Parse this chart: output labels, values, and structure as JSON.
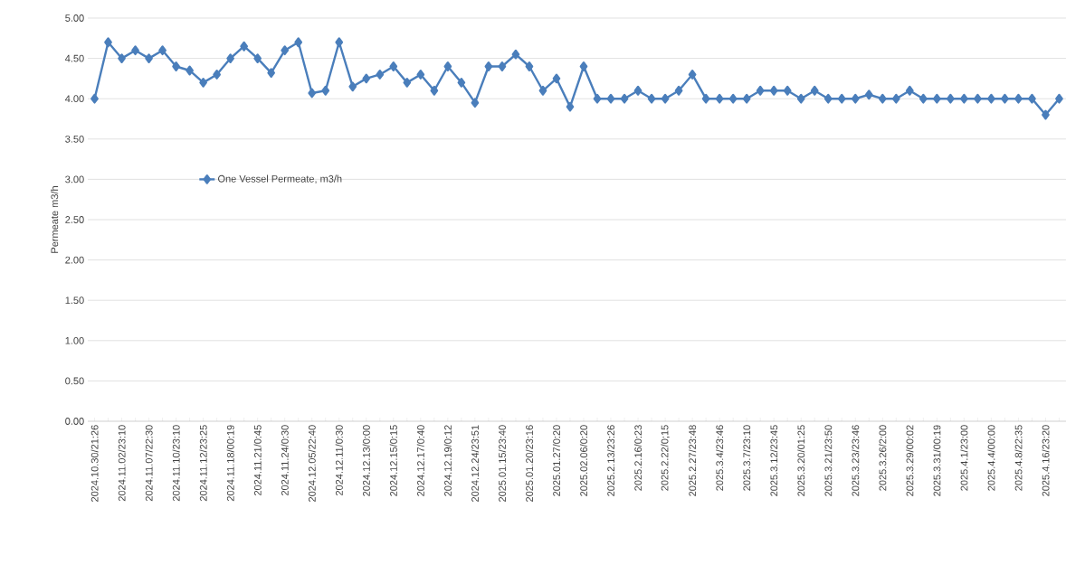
{
  "chart_data": {
    "type": "line",
    "ylabel": "Permeate m3/h",
    "categories": [
      "2024.10.30/21:26",
      null,
      "2024.11.02/23:10",
      null,
      "2024.11.07/22:30",
      null,
      "2024.11.10/23:10",
      null,
      "2024.11.12/23:25",
      null,
      "2024.11.18/00:19",
      null,
      "2024.11.21/0:45",
      null,
      "2024.11.24/0:30",
      null,
      "2024.12.05/22:40",
      null,
      "2024.12.11/0:30",
      null,
      "2024.12.13/0:00",
      null,
      "2024.12.15/0:15",
      null,
      "2024.12.17/0:40",
      null,
      "2024.12.19/0:12",
      null,
      "2024.12.24/23:51",
      null,
      "2025.01.15/23:40",
      null,
      "2025.01.20/23:16",
      null,
      "2025.01.27/0:20",
      null,
      "2025.02.06/0:20",
      null,
      "2025.2.13/23:26",
      null,
      "2025.2.16/0:23",
      null,
      "2025.2.22/0;15",
      null,
      "2025.2.27/23:48",
      null,
      "2025.3.4/23:46",
      null,
      "2025.3.7/23:10",
      null,
      "2025.3.12/23:45",
      null,
      "2025.3.20/01:25",
      null,
      "2025.3.21/23:50",
      null,
      "2025.3.23/23:46",
      null,
      "2025.3.26/2:00",
      null,
      "2025.3.29/00:02",
      null,
      "2025.3.31/00:19",
      null,
      "2025.4.1/23:00",
      null,
      "2025.4.4/00:00",
      null,
      "2025.4.8/22:35",
      null,
      "2025.4.16/23:20",
      null
    ],
    "series": [
      {
        "name": "One Vessel Permeate, m3/h",
        "color": "#4a7ebb",
        "values": [
          4.0,
          4.7,
          4.5,
          4.6,
          4.5,
          4.6,
          4.4,
          4.35,
          4.2,
          4.3,
          4.5,
          4.65,
          4.5,
          4.32,
          4.6,
          4.7,
          4.07,
          4.1,
          4.7,
          4.15,
          4.25,
          4.3,
          4.4,
          4.2,
          4.3,
          4.1,
          4.4,
          4.2,
          3.95,
          4.4,
          4.4,
          4.55,
          4.4,
          4.1,
          4.25,
          3.9,
          4.4,
          4.0,
          4.0,
          4.0,
          4.1,
          4.0,
          4.0,
          4.1,
          4.3,
          4.0,
          4.0,
          4.0,
          4.0,
          4.1,
          4.1,
          4.1,
          4.0,
          4.1,
          4.0,
          4.0,
          4.0,
          4.05,
          4.0,
          4.0,
          4.1,
          4.0,
          4.0,
          4.0,
          4.0,
          4.0,
          4.0,
          4.0,
          4.0,
          4.0,
          3.8,
          4.0
        ]
      }
    ],
    "ylim": [
      0,
      5
    ],
    "yticks": [
      {
        "value": 0,
        "label": "0.00"
      },
      {
        "value": 0.5,
        "label": "0.50"
      },
      {
        "value": 1,
        "label": "1.00"
      },
      {
        "value": 1.5,
        "label": "1.50"
      },
      {
        "value": 2,
        "label": "2.00"
      },
      {
        "value": 2.5,
        "label": "2.50"
      },
      {
        "value": 3,
        "label": "3.00"
      },
      {
        "value": 3.5,
        "label": "3.50"
      },
      {
        "value": 4,
        "label": "4.00"
      },
      {
        "value": 4.5,
        "label": "4.50"
      },
      {
        "value": 5,
        "label": "5.00"
      }
    ],
    "grid": "y",
    "legend": "left",
    "marker": "diamond",
    "line_style": "solid"
  }
}
